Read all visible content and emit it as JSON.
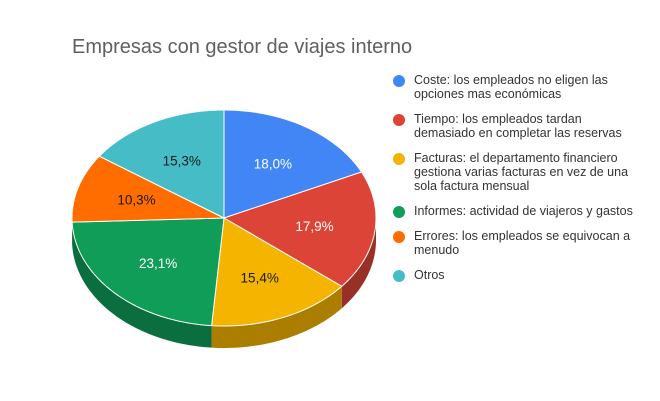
{
  "chart_data": {
    "type": "pie",
    "title": "Empresas con gestor de viajes interno",
    "slices": [
      {
        "name": "Coste: los empleados no eligen las opciones mas económicas",
        "value": 18.0,
        "label": "18,0%",
        "color": "#4285f4",
        "label_color": "#ffffff"
      },
      {
        "name": "Tiempo: los empleados tardan demasiado en completar las reservas",
        "value": 17.9,
        "label": "17,9%",
        "color": "#db4437",
        "label_color": "#ffffff"
      },
      {
        "name": "Facturas: el departamento financiero gestiona varias facturas en vez de una sola factura mensual",
        "value": 15.4,
        "label": "15,4%",
        "color": "#f4b400",
        "label_color": "#1a1a1a"
      },
      {
        "name": "Informes: actividad de viajeros y gastos",
        "value": 23.1,
        "label": "23,1%",
        "color": "#0f9d58",
        "label_color": "#ffffff"
      },
      {
        "name": "Errores: los empleados se equivocan a menudo",
        "value": 10.3,
        "label": "10,3%",
        "color": "#ff6d01",
        "label_color": "#1a1a1a"
      },
      {
        "name": "Otros",
        "value": 15.3,
        "label": "15,3%",
        "color": "#46bdc6",
        "label_color": "#1a1a1a"
      }
    ],
    "style": "3d",
    "start_angle": "top",
    "direction": "clockwise",
    "legend_position": "right"
  }
}
